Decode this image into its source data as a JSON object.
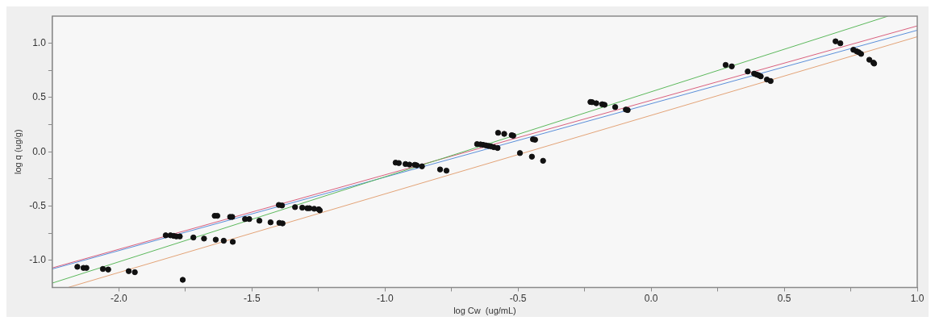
{
  "chart_data": {
    "type": "scatter",
    "xlabel": "log Cw  (ug/mL)",
    "ylabel": "log q (ug/g)",
    "xlim": [
      -2.25,
      1.0
    ],
    "ylim": [
      -1.25,
      1.25
    ],
    "xticks": [
      {
        "value": -2.0,
        "label": "-2.0"
      },
      {
        "value": -1.75,
        "label": null
      },
      {
        "value": -1.5,
        "label": "-1.5"
      },
      {
        "value": -1.25,
        "label": null
      },
      {
        "value": -1.0,
        "label": "-1.0"
      },
      {
        "value": -0.75,
        "label": null
      },
      {
        "value": -0.5,
        "label": "-0.5"
      },
      {
        "value": -0.25,
        "label": null
      },
      {
        "value": 0.0,
        "label": "0.0"
      },
      {
        "value": 0.25,
        "label": null
      },
      {
        "value": 0.5,
        "label": "0.5"
      },
      {
        "value": 0.75,
        "label": null
      },
      {
        "value": 1.0,
        "label": "1.0"
      }
    ],
    "yticks": [
      {
        "value": -1.0,
        "label": "-1.0"
      },
      {
        "value": -0.75,
        "label": null
      },
      {
        "value": -0.5,
        "label": "-0.5"
      },
      {
        "value": -0.25,
        "label": null
      },
      {
        "value": 0.0,
        "label": "0.0"
      },
      {
        "value": 0.25,
        "label": null
      },
      {
        "value": 0.5,
        "label": "0.5"
      },
      {
        "value": 0.75,
        "label": null
      },
      {
        "value": 1.0,
        "label": "1.0"
      }
    ],
    "grid": false,
    "legend": false,
    "marker": "circle",
    "series": [
      {
        "color": "#111111",
        "x": [
          -2.156,
          -2.133,
          -2.122,
          -2.06,
          -2.04,
          -1.963,
          -1.94,
          -1.76,
          -1.824,
          -1.806,
          -1.794,
          -1.784,
          -1.771,
          -1.72,
          -1.68,
          -1.64,
          -1.63,
          -1.636,
          -1.606,
          -1.572,
          -1.582,
          -1.574,
          -1.526,
          -1.51,
          -1.472,
          -1.43,
          -1.399,
          -1.387,
          -1.397,
          -1.385,
          -1.338,
          -1.311,
          -1.292,
          -1.284,
          -1.266,
          -1.249,
          -1.245,
          -0.96,
          -0.948,
          -0.923,
          -0.908,
          -0.888,
          -0.881,
          -0.861,
          -0.793,
          -0.769,
          -0.654,
          -0.641,
          -0.631,
          -0.621,
          -0.611,
          -0.601,
          -0.591,
          -0.577,
          -0.575,
          -0.552,
          -0.524,
          -0.518,
          -0.493,
          -0.448,
          -0.444,
          -0.436,
          -0.406,
          -0.228,
          -0.222,
          -0.206,
          -0.184,
          -0.175,
          -0.135,
          -0.095,
          -0.088,
          0.28,
          0.303,
          0.363,
          0.387,
          0.396,
          0.404,
          0.412,
          0.435,
          0.449,
          0.693,
          0.711,
          0.76,
          0.772,
          0.78,
          0.789,
          0.82,
          0.835,
          0.838
        ],
        "values": [
          -1.06,
          -1.07,
          -1.07,
          -1.08,
          -1.085,
          -1.1,
          -1.11,
          -1.18,
          -0.77,
          -0.77,
          -0.775,
          -0.78,
          -0.78,
          -0.79,
          -0.8,
          -0.59,
          -0.59,
          -0.81,
          -0.82,
          -0.83,
          -0.6,
          -0.6,
          -0.62,
          -0.62,
          -0.635,
          -0.65,
          -0.49,
          -0.495,
          -0.655,
          -0.66,
          -0.51,
          -0.515,
          -0.52,
          -0.52,
          -0.525,
          -0.53,
          -0.54,
          -0.1,
          -0.104,
          -0.113,
          -0.118,
          -0.12,
          -0.125,
          -0.134,
          -0.163,
          -0.174,
          0.071,
          0.068,
          0.064,
          0.059,
          0.054,
          0.049,
          0.042,
          0.035,
          0.175,
          0.165,
          0.153,
          0.148,
          -0.012,
          -0.045,
          0.115,
          0.111,
          -0.083,
          0.459,
          0.457,
          0.447,
          0.438,
          0.433,
          0.412,
          0.389,
          0.384,
          0.8,
          0.787,
          0.74,
          0.72,
          0.712,
          0.705,
          0.695,
          0.666,
          0.652,
          1.018,
          1.0,
          0.94,
          0.926,
          0.917,
          0.902,
          0.848,
          0.822,
          0.813
        ]
      },
      {
        "type": "line",
        "marker": "none",
        "color": "#5cb85c",
        "x": [
          -2.25,
          0.89
        ],
        "values": [
          -1.21,
          1.25
        ]
      },
      {
        "type": "line",
        "marker": "none",
        "color": "#d9607e",
        "x": [
          -2.25,
          1.0
        ],
        "values": [
          -1.07,
          1.16
        ]
      },
      {
        "type": "line",
        "marker": "none",
        "color": "#5b8fd9",
        "x": [
          -2.25,
          1.0
        ],
        "values": [
          -1.08,
          1.12
        ]
      },
      {
        "type": "line",
        "marker": "none",
        "color": "#e3a377",
        "x": [
          -2.19,
          1.0
        ],
        "values": [
          -1.25,
          1.06
        ]
      }
    ]
  }
}
